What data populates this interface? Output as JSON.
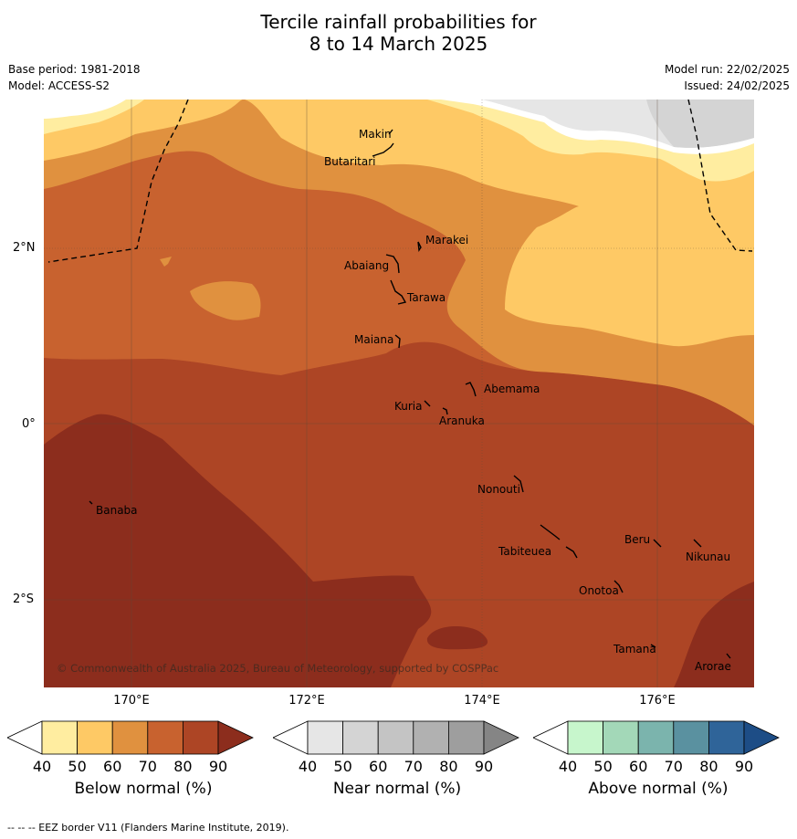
{
  "title_line1": "Tercile rainfall probabilities for",
  "title_line2": "8 to 14 March 2025",
  "base_period": "Base period: 1981-2018",
  "model": "Model: ACCESS-S2",
  "model_run": "Model run: 22/02/2025",
  "issued": "Issued: 24/02/2025",
  "lat_ticks": [
    "2°N",
    "0°",
    "2°S"
  ],
  "lon_ticks": [
    "170°E",
    "172°E",
    "174°E",
    "176°E"
  ],
  "places": [
    {
      "name": "Makin"
    },
    {
      "name": "Butaritari"
    },
    {
      "name": "Marakei"
    },
    {
      "name": "Abaiang"
    },
    {
      "name": "Tarawa"
    },
    {
      "name": "Maiana"
    },
    {
      "name": "Abemama"
    },
    {
      "name": "Kuria"
    },
    {
      "name": "Aranuka"
    },
    {
      "name": "Banaba"
    },
    {
      "name": "Nonouti"
    },
    {
      "name": "Beru"
    },
    {
      "name": "Tabiteuea"
    },
    {
      "name": "Nikunau"
    },
    {
      "name": "Onotoa"
    },
    {
      "name": "Tamana"
    },
    {
      "name": "Arorae"
    }
  ],
  "copyright": "© Commonwealth of Australia 2025, Bureau of Meteorology, supported by COSPPac",
  "colorbars": [
    {
      "label": "Below normal (%)",
      "ticks": [
        "40",
        "50",
        "60",
        "70",
        "80",
        "90"
      ],
      "colors": [
        "#ffffff",
        "#ffeda0",
        "#fec965",
        "#e0913f",
        "#c8622f",
        "#ad4525",
        "#8c2d1d"
      ]
    },
    {
      "label": "Near normal (%)",
      "ticks": [
        "40",
        "50",
        "60",
        "70",
        "80",
        "90"
      ],
      "colors": [
        "#ffffff",
        "#e6e6e6",
        "#d4d4d4",
        "#c4c4c4",
        "#b1b1b1",
        "#9e9e9e",
        "#858585"
      ]
    },
    {
      "label": "Above normal (%)",
      "ticks": [
        "40",
        "50",
        "60",
        "70",
        "80",
        "90"
      ],
      "colors": [
        "#ffffff",
        "#c7f6cc",
        "#a3d8b8",
        "#7bb4ad",
        "#5a91a0",
        "#2f6499",
        "#1d4d86"
      ]
    }
  ],
  "footnote": "-- -- -- EEZ border V11 (Flanders Marine Institute, 2019)."
}
